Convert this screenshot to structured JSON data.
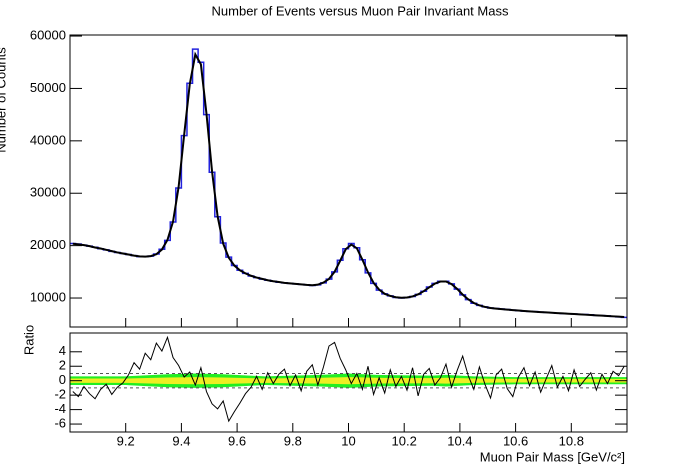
{
  "chart_data": [
    {
      "type": "step",
      "title": "Number of Events versus Muon Pair Invariant Mass",
      "y_label": "Number of Counts",
      "x": [
        9.01,
        9.03,
        9.05,
        9.07,
        9.09,
        9.11,
        9.13,
        9.15,
        9.17,
        9.19,
        9.21,
        9.23,
        9.25,
        9.27,
        9.29,
        9.31,
        9.33,
        9.35,
        9.37,
        9.39,
        9.41,
        9.43,
        9.45,
        9.47,
        9.49,
        9.51,
        9.53,
        9.55,
        9.57,
        9.59,
        9.61,
        9.63,
        9.65,
        9.67,
        9.69,
        9.71,
        9.73,
        9.75,
        9.77,
        9.79,
        9.81,
        9.83,
        9.85,
        9.87,
        9.89,
        9.91,
        9.93,
        9.95,
        9.97,
        9.99,
        10.01,
        10.03,
        10.05,
        10.07,
        10.09,
        10.11,
        10.13,
        10.15,
        10.17,
        10.19,
        10.21,
        10.23,
        10.25,
        10.27,
        10.29,
        10.31,
        10.33,
        10.35,
        10.37,
        10.39,
        10.41,
        10.43,
        10.45,
        10.47,
        10.49,
        10.51,
        10.53,
        10.55,
        10.57,
        10.59,
        10.61,
        10.63,
        10.65,
        10.67,
        10.69,
        10.71,
        10.73,
        10.75,
        10.77,
        10.79,
        10.81,
        10.83,
        10.85,
        10.87,
        10.89,
        10.91,
        10.93,
        10.95,
        10.97,
        10.99
      ],
      "series": [
        {
          "color": "#2222dd",
          "values": [
            20400,
            20300,
            20100,
            19900,
            19700,
            19400,
            19200,
            18900,
            18700,
            18500,
            18300,
            18100,
            17900,
            17900,
            18000,
            18400,
            19300,
            21000,
            24500,
            31000,
            41000,
            51000,
            57500,
            55000,
            45000,
            34000,
            25500,
            20500,
            17800,
            16200,
            15300,
            14700,
            14200,
            13900,
            13600,
            13400,
            13200,
            13000,
            12900,
            12800,
            12700,
            12600,
            12500,
            12400,
            12500,
            12900,
            13600,
            15000,
            17200,
            19400,
            20400,
            19600,
            17300,
            14800,
            12800,
            11500,
            10800,
            10400,
            10100,
            10000,
            10100,
            10300,
            10700,
            11300,
            12100,
            12800,
            13200,
            13200,
            12700,
            11700,
            10600,
            9700,
            9000,
            8600,
            8300,
            8100,
            8000,
            7900,
            7800,
            7700,
            7600,
            7500,
            7450,
            7400,
            7300,
            7250,
            7200,
            7100,
            7050,
            7000,
            6950,
            6900,
            6850,
            6800,
            6700,
            6650,
            6600,
            6500,
            6400,
            6300
          ]
        },
        {
          "color": "#000000",
          "values": [
            20350,
            20250,
            20100,
            19900,
            19650,
            19450,
            19200,
            18950,
            18700,
            18500,
            18300,
            18100,
            17950,
            17900,
            18000,
            18350,
            19250,
            21100,
            24600,
            31200,
            41200,
            50800,
            56500,
            54600,
            45200,
            34200,
            25600,
            20400,
            17700,
            16200,
            15300,
            14700,
            14250,
            13900,
            13650,
            13400,
            13200,
            13050,
            12900,
            12800,
            12700,
            12600,
            12500,
            12450,
            12550,
            12950,
            13650,
            15000,
            17100,
            19300,
            20200,
            19500,
            17300,
            14900,
            12900,
            11600,
            10800,
            10400,
            10150,
            10050,
            10100,
            10300,
            10700,
            11300,
            12050,
            12750,
            13150,
            13150,
            12650,
            11750,
            10650,
            9750,
            9050,
            8600,
            8300,
            8100,
            7980,
            7880,
            7790,
            7700,
            7610,
            7520,
            7450,
            7380,
            7310,
            7250,
            7190,
            7120,
            7060,
            7000,
            6940,
            6880,
            6820,
            6760,
            6700,
            6640,
            6580,
            6510,
            6440,
            6370
          ]
        }
      ],
      "xlim": [
        9,
        11
      ],
      "ylim": [
        4470,
        60200
      ],
      "yticks": [
        10000,
        20000,
        30000,
        40000,
        50000,
        60000
      ]
    },
    {
      "type": "ratio",
      "y_label": "Ratio",
      "x_label": "Muon Pair Mass [GeV/c²]",
      "values": [
        -1.5,
        -2.2,
        -0.8,
        -1.8,
        -2.5,
        -1.2,
        -0.5,
        -1.9,
        -0.9,
        -0.3,
        0.8,
        2.5,
        1.6,
        3.8,
        2.9,
        5.2,
        4.1,
        6.0,
        3.2,
        2.1,
        0.5,
        1.2,
        -0.6,
        1.8,
        -1.5,
        -3.2,
        -3.9,
        -2.8,
        -5.6,
        -4.3,
        -3.1,
        -1.8,
        -0.9,
        0.6,
        -1.2,
        1.1,
        -0.4,
        0.9,
        1.6,
        -0.7,
        0.8,
        -1.4,
        1.3,
        2.2,
        -0.6,
        1.9,
        4.8,
        5.3,
        3.1,
        1.5,
        -0.4,
        1.0,
        -1.2,
        2.0,
        -1.9,
        0.4,
        -1.7,
        1.5,
        -0.8,
        0.6,
        -1.3,
        1.8,
        -2.1,
        0.9,
        1.7,
        -0.6,
        0.4,
        2.3,
        -0.9,
        1.4,
        3.4,
        0.7,
        -1.2,
        1.9,
        -0.5,
        -2.4,
        0.8,
        1.6,
        -1.1,
        -2.2,
        0.5,
        1.8,
        -0.7,
        1.2,
        -1.6,
        0.3,
        2.1,
        -0.9,
        0.6,
        -1.4,
        1.5,
        -0.8,
        0.2,
        1.1,
        -1.3,
        0.9,
        -0.4,
        1.3,
        0.7,
        2.0
      ],
      "color": "#000000",
      "band_x": [
        9.0,
        9.2,
        9.35,
        9.45,
        9.55,
        9.7,
        9.9,
        10.0,
        10.1,
        10.3,
        10.35,
        10.45,
        10.6,
        11.0
      ],
      "band_2sigma": [
        0.6,
        0.6,
        0.9,
        1.0,
        0.9,
        0.6,
        0.8,
        1.0,
        0.8,
        0.7,
        0.8,
        0.6,
        0.5,
        0.5
      ],
      "band_1sigma": [
        0.3,
        0.3,
        0.45,
        0.5,
        0.45,
        0.3,
        0.4,
        0.5,
        0.4,
        0.35,
        0.4,
        0.3,
        0.25,
        0.25
      ],
      "band_colors": [
        "#22ee22",
        "#eeee22"
      ],
      "ref_lines": [
        1,
        -1
      ],
      "xlim": [
        9,
        11
      ],
      "ylim": [
        -7.1,
        6.6
      ],
      "xticks": [
        9.2,
        9.4,
        9.6,
        9.8,
        10,
        10.2,
        10.4,
        10.6,
        10.8
      ],
      "yticks": [
        -6,
        -4,
        -2,
        0,
        2,
        4
      ]
    }
  ]
}
